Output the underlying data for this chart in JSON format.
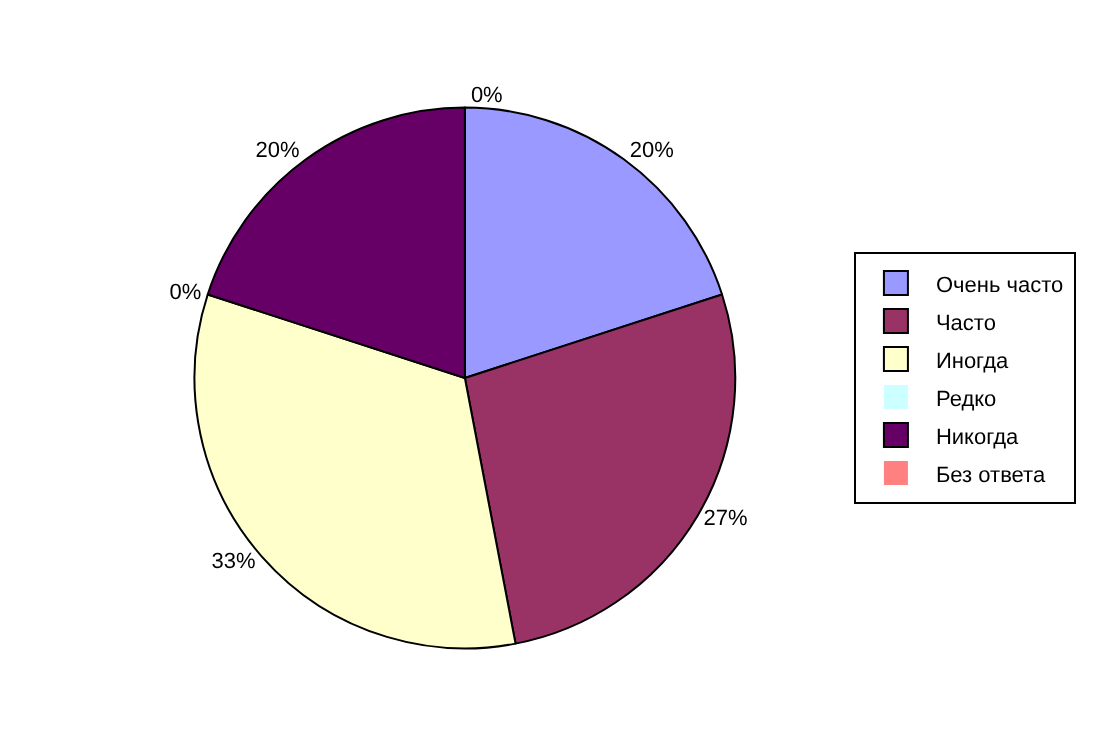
{
  "chart_data": {
    "type": "pie",
    "categories": [
      "Очень часто",
      "Часто",
      "Иногда",
      "Редко",
      "Никогда",
      "Без ответа"
    ],
    "values": [
      20,
      27,
      33,
      0,
      20,
      0
    ],
    "colors": [
      "#9999ff",
      "#993366",
      "#ffffcc",
      "#ccffff",
      "#660066",
      "#ff8080"
    ],
    "value_labels": [
      "20%",
      "27%",
      "33%",
      "0%",
      "20%",
      "0%"
    ],
    "legend": "right"
  }
}
